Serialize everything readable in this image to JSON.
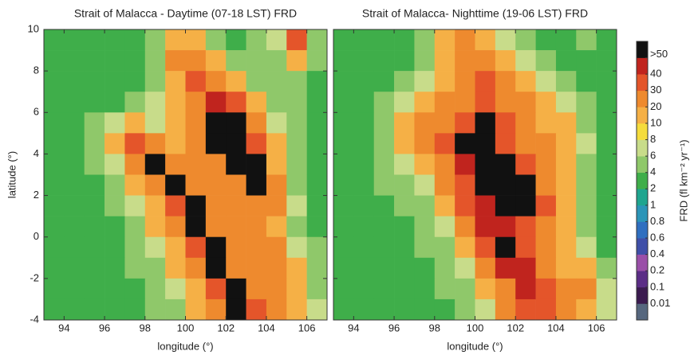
{
  "chart_data": [
    {
      "type": "heatmap",
      "title": "Strait of Malacca - Daytime (07-18 LST) FRD",
      "xlabel": "longitude (°)",
      "ylabel": "latitude (°)",
      "ytick_labels": true,
      "xlim": [
        93,
        107
      ],
      "ylim": [
        -4,
        10
      ],
      "xticks": [
        94,
        96,
        98,
        100,
        102,
        104,
        106
      ],
      "yticks": [
        -4,
        -2,
        0,
        2,
        4,
        6,
        8,
        10
      ],
      "x": [
        93.5,
        94.5,
        95.5,
        96.5,
        97.5,
        98.5,
        99.5,
        100.5,
        101.5,
        102.5,
        103.5,
        104.5,
        105.5,
        106.5
      ],
      "y": [
        9.5,
        8.5,
        7.5,
        6.5,
        5.5,
        4.5,
        3.5,
        2.5,
        1.5,
        0.5,
        -0.5,
        -1.5,
        -2.5,
        -3.5
      ],
      "z": [
        [
          3,
          3,
          3,
          3,
          3,
          4,
          10,
          10,
          4,
          3,
          4,
          6,
          30,
          4
        ],
        [
          3,
          3,
          3,
          3,
          3,
          4,
          20,
          20,
          10,
          4,
          4,
          4,
          10,
          4
        ],
        [
          3,
          3,
          3,
          3,
          3,
          4,
          10,
          30,
          20,
          10,
          4,
          4,
          4,
          3
        ],
        [
          3,
          3,
          3,
          3,
          4,
          6,
          10,
          20,
          40,
          30,
          10,
          4,
          4,
          3
        ],
        [
          3,
          3,
          4,
          6,
          10,
          6,
          10,
          20,
          50,
          50,
          20,
          6,
          4,
          3
        ],
        [
          3,
          3,
          4,
          10,
          30,
          20,
          10,
          20,
          50,
          50,
          30,
          10,
          4,
          3
        ],
        [
          3,
          3,
          4,
          6,
          20,
          50,
          20,
          20,
          20,
          50,
          50,
          10,
          4,
          3
        ],
        [
          3,
          3,
          3,
          4,
          10,
          20,
          50,
          20,
          20,
          20,
          50,
          20,
          4,
          3
        ],
        [
          3,
          3,
          3,
          4,
          6,
          10,
          30,
          50,
          20,
          20,
          20,
          20,
          6,
          3
        ],
        [
          3,
          3,
          3,
          3,
          4,
          10,
          20,
          50,
          20,
          20,
          20,
          10,
          4,
          3
        ],
        [
          3,
          3,
          3,
          3,
          4,
          6,
          10,
          30,
          50,
          20,
          20,
          20,
          6,
          4
        ],
        [
          3,
          3,
          3,
          3,
          4,
          4,
          10,
          20,
          50,
          20,
          20,
          20,
          10,
          4
        ],
        [
          3,
          3,
          3,
          3,
          3,
          4,
          6,
          10,
          30,
          50,
          20,
          20,
          10,
          4
        ],
        [
          3,
          3,
          3,
          3,
          3,
          4,
          4,
          10,
          20,
          50,
          30,
          20,
          10,
          6
        ]
      ]
    },
    {
      "type": "heatmap",
      "title": "Strait of Malacca- Nighttime (19-06 LST) FRD",
      "xlabel": "longitude (°)",
      "ytick_labels": false,
      "xlim": [
        93,
        107
      ],
      "ylim": [
        -4,
        10
      ],
      "xticks": [
        94,
        96,
        98,
        100,
        102,
        104,
        106
      ],
      "yticks": [
        -4,
        -2,
        0,
        2,
        4,
        6,
        8,
        10
      ],
      "x": [
        93.5,
        94.5,
        95.5,
        96.5,
        97.5,
        98.5,
        99.5,
        100.5,
        101.5,
        102.5,
        103.5,
        104.5,
        105.5,
        106.5
      ],
      "y": [
        9.5,
        8.5,
        7.5,
        6.5,
        5.5,
        4.5,
        3.5,
        2.5,
        1.5,
        0.5,
        -0.5,
        -1.5,
        -2.5,
        -3.5
      ],
      "z": [
        [
          3,
          3,
          3,
          3,
          4,
          10,
          20,
          10,
          6,
          4,
          3,
          3,
          4,
          3
        ],
        [
          3,
          3,
          3,
          3,
          4,
          10,
          20,
          20,
          10,
          6,
          4,
          3,
          3,
          3
        ],
        [
          3,
          3,
          3,
          4,
          6,
          10,
          20,
          30,
          20,
          10,
          6,
          4,
          3,
          3
        ],
        [
          3,
          3,
          4,
          6,
          10,
          20,
          20,
          30,
          20,
          20,
          10,
          6,
          4,
          3
        ],
        [
          3,
          3,
          4,
          10,
          20,
          20,
          30,
          50,
          30,
          20,
          10,
          10,
          4,
          3
        ],
        [
          3,
          3,
          4,
          10,
          20,
          30,
          50,
          50,
          30,
          20,
          20,
          10,
          6,
          3
        ],
        [
          3,
          3,
          4,
          6,
          10,
          20,
          40,
          50,
          50,
          30,
          20,
          10,
          4,
          3
        ],
        [
          3,
          3,
          4,
          4,
          6,
          20,
          30,
          50,
          50,
          50,
          20,
          10,
          4,
          3
        ],
        [
          3,
          3,
          3,
          4,
          4,
          10,
          30,
          40,
          50,
          50,
          30,
          10,
          4,
          3
        ],
        [
          3,
          3,
          3,
          3,
          4,
          6,
          20,
          40,
          40,
          30,
          20,
          10,
          4,
          3
        ],
        [
          3,
          3,
          3,
          3,
          4,
          4,
          10,
          30,
          50,
          30,
          20,
          10,
          6,
          3
        ],
        [
          3,
          3,
          3,
          3,
          3,
          4,
          6,
          20,
          40,
          40,
          20,
          10,
          10,
          4
        ],
        [
          3,
          3,
          3,
          3,
          3,
          4,
          4,
          10,
          20,
          40,
          30,
          20,
          20,
          6
        ],
        [
          3,
          3,
          3,
          3,
          3,
          3,
          4,
          6,
          20,
          30,
          30,
          20,
          10,
          6
        ]
      ]
    }
  ],
  "colorbar": {
    "label": "FRD (fl km⁻² yr⁻¹)",
    "ticks": [
      0.01,
      0.1,
      0.2,
      0.4,
      0.6,
      0.8,
      1,
      2,
      4,
      6,
      8,
      10,
      20,
      30,
      40,
      {
        "value": 50,
        "label": ">50"
      }
    ],
    "colors": [
      "#56677e",
      "#3b1b4f",
      "#5b2d86",
      "#9a4fa8",
      "#3f4fa8",
      "#2f6fc0",
      "#2b95b8",
      "#1fa58f",
      "#3fae4a",
      "#8fc86a",
      "#c8dc8a",
      "#f5dc3c",
      "#f5b046",
      "#ee8a2e",
      "#e4552a",
      "#c0241e",
      "#111111"
    ]
  }
}
